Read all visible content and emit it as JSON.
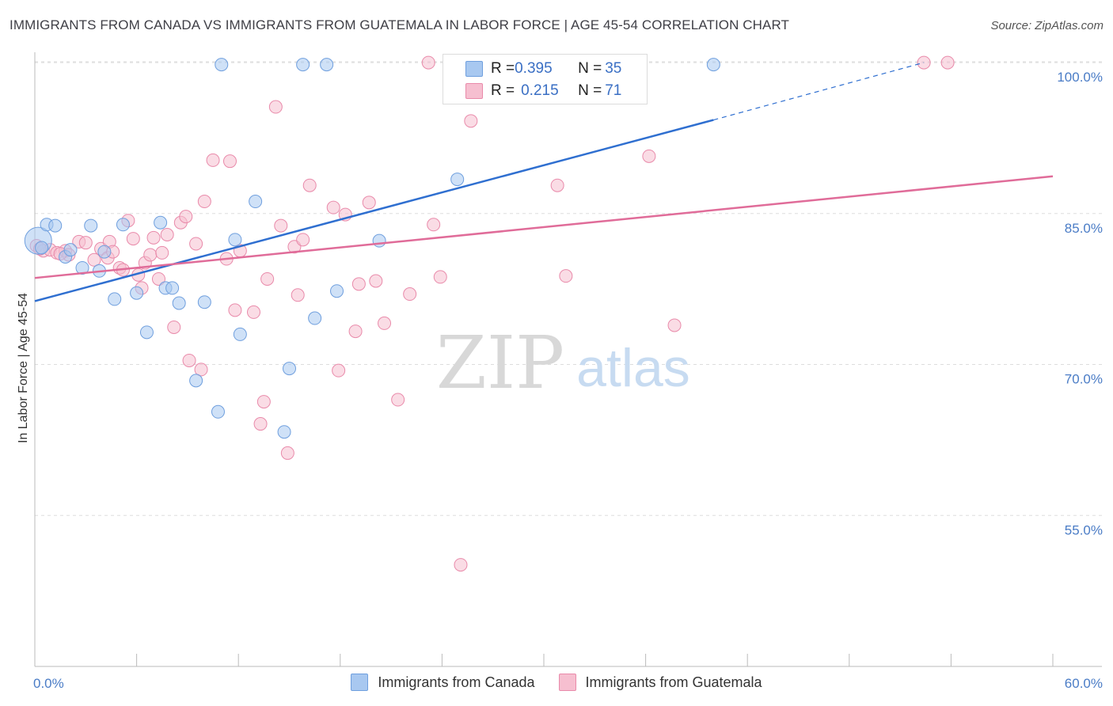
{
  "header": {
    "title": "IMMIGRANTS FROM CANADA VS IMMIGRANTS FROM GUATEMALA IN LABOR FORCE | AGE 45-54 CORRELATION CHART",
    "source": "Source: ZipAtlas.com"
  },
  "watermark": {
    "zip": "ZIP",
    "atlas": "atlas"
  },
  "stats": {
    "canada": {
      "r_label": "R = ",
      "r_value": "0.395",
      "n_label": "N = ",
      "n_value": "35"
    },
    "guatemala": {
      "r_label": "R = ",
      "r_value": "0.215",
      "n_label": "N = ",
      "n_value": "71"
    }
  },
  "legend": {
    "canada": "Immigrants from Canada",
    "guatemala": "Immigrants from Guatemala"
  },
  "colors": {
    "canada_fill": "#a8c8f0",
    "canada_stroke": "#6f9fde",
    "canada_line": "#2f6fd0",
    "guatemala_fill": "#f6bfd0",
    "guatemala_stroke": "#e98aaa",
    "guatemala_line": "#e06c99",
    "tick_label": "#4a7cc6",
    "grid": "#dddddd"
  },
  "chart_data": {
    "type": "scatter",
    "title": "IMMIGRANTS FROM CANADA VS IMMIGRANTS FROM GUATEMALA IN LABOR FORCE | AGE 45-54 CORRELATION CHART",
    "xlabel": "",
    "ylabel": "In Labor Force | Age 45-54",
    "xlim": [
      0,
      60
    ],
    "ylim": [
      40,
      101.5
    ],
    "x_tick_labels": [
      "0.0%",
      "60.0%"
    ],
    "y_ticks": [
      100,
      85,
      70,
      55
    ],
    "y_tick_labels": [
      "100.0%",
      "85.0%",
      "70.0%",
      "55.0%"
    ],
    "grid": true,
    "legend_position": "bottom-center",
    "series": [
      {
        "name": "Immigrants from Canada",
        "r": 0.395,
        "n": 35,
        "trend": {
          "x0": 0,
          "y0": 76.3,
          "x1": 40,
          "y1": 94.3,
          "dashed_to_x": 52.4,
          "dashed_to_y": 100
        },
        "points": [
          [
            0.2,
            82.3
          ],
          [
            0.4,
            81.6
          ],
          [
            0.7,
            83.9
          ],
          [
            1.2,
            83.8
          ],
          [
            1.8,
            80.7
          ],
          [
            2.1,
            81.4
          ],
          [
            2.8,
            79.6
          ],
          [
            3.3,
            83.8
          ],
          [
            3.8,
            79.3
          ],
          [
            4.1,
            81.2
          ],
          [
            4.7,
            76.5
          ],
          [
            5.2,
            83.9
          ],
          [
            6.0,
            77.1
          ],
          [
            6.6,
            73.2
          ],
          [
            7.4,
            84.1
          ],
          [
            7.7,
            77.6
          ],
          [
            8.1,
            77.6
          ],
          [
            8.5,
            76.1
          ],
          [
            9.5,
            68.4
          ],
          [
            10.0,
            76.2
          ],
          [
            10.8,
            65.3
          ],
          [
            11.0,
            99.8
          ],
          [
            11.8,
            82.4
          ],
          [
            12.1,
            73.0
          ],
          [
            13.0,
            86.2
          ],
          [
            14.7,
            63.3
          ],
          [
            15.0,
            69.6
          ],
          [
            15.8,
            99.8
          ],
          [
            16.5,
            74.6
          ],
          [
            17.2,
            99.8
          ],
          [
            17.8,
            77.3
          ],
          [
            20.3,
            82.3
          ],
          [
            24.9,
            88.4
          ],
          [
            25.5,
            99.8
          ],
          [
            40.0,
            99.8
          ]
        ]
      },
      {
        "name": "Immigrants from Guatemala",
        "r": 0.215,
        "n": 71,
        "trend": {
          "x0": 0,
          "y0": 78.6,
          "x1": 60,
          "y1": 88.7
        },
        "points": [
          [
            0.1,
            81.8
          ],
          [
            0.5,
            81.3
          ],
          [
            0.9,
            81.4
          ],
          [
            1.3,
            81.1
          ],
          [
            1.8,
            81.3
          ],
          [
            2.0,
            80.9
          ],
          [
            2.6,
            82.2
          ],
          [
            3.0,
            82.1
          ],
          [
            3.5,
            80.4
          ],
          [
            3.9,
            81.5
          ],
          [
            4.3,
            80.6
          ],
          [
            4.4,
            82.2
          ],
          [
            4.6,
            81.2
          ],
          [
            5.0,
            79.6
          ],
          [
            5.2,
            79.4
          ],
          [
            5.5,
            84.3
          ],
          [
            5.8,
            82.5
          ],
          [
            6.1,
            78.9
          ],
          [
            6.3,
            77.6
          ],
          [
            6.5,
            80.1
          ],
          [
            6.8,
            80.9
          ],
          [
            7.0,
            82.6
          ],
          [
            7.3,
            78.5
          ],
          [
            7.5,
            81.1
          ],
          [
            7.8,
            82.9
          ],
          [
            8.2,
            73.7
          ],
          [
            8.6,
            84.1
          ],
          [
            8.9,
            84.7
          ],
          [
            9.1,
            70.4
          ],
          [
            9.5,
            82.0
          ],
          [
            9.8,
            69.5
          ],
          [
            10.0,
            86.2
          ],
          [
            10.5,
            90.3
          ],
          [
            11.3,
            80.5
          ],
          [
            11.5,
            90.2
          ],
          [
            11.8,
            75.4
          ],
          [
            12.1,
            81.3
          ],
          [
            12.9,
            75.2
          ],
          [
            13.3,
            64.1
          ],
          [
            13.5,
            66.3
          ],
          [
            13.7,
            78.5
          ],
          [
            14.2,
            95.6
          ],
          [
            14.5,
            83.8
          ],
          [
            14.9,
            61.2
          ],
          [
            15.3,
            81.7
          ],
          [
            15.5,
            76.9
          ],
          [
            15.8,
            82.4
          ],
          [
            16.2,
            87.8
          ],
          [
            17.6,
            85.6
          ],
          [
            17.9,
            69.4
          ],
          [
            18.3,
            84.9
          ],
          [
            18.9,
            73.3
          ],
          [
            19.1,
            78.0
          ],
          [
            19.7,
            86.1
          ],
          [
            20.1,
            78.3
          ],
          [
            20.6,
            74.1
          ],
          [
            21.4,
            66.5
          ],
          [
            22.1,
            77.0
          ],
          [
            23.5,
            83.9
          ],
          [
            23.9,
            78.7
          ],
          [
            25.1,
            50.1
          ],
          [
            25.7,
            94.2
          ],
          [
            23.2,
            100
          ],
          [
            30.8,
            87.8
          ],
          [
            31.3,
            78.8
          ],
          [
            36.2,
            90.7
          ],
          [
            37.7,
            73.9
          ],
          [
            52.4,
            100
          ],
          [
            53.8,
            100
          ],
          [
            1.5,
            81.0
          ],
          [
            0.3,
            81.5
          ]
        ]
      }
    ]
  }
}
